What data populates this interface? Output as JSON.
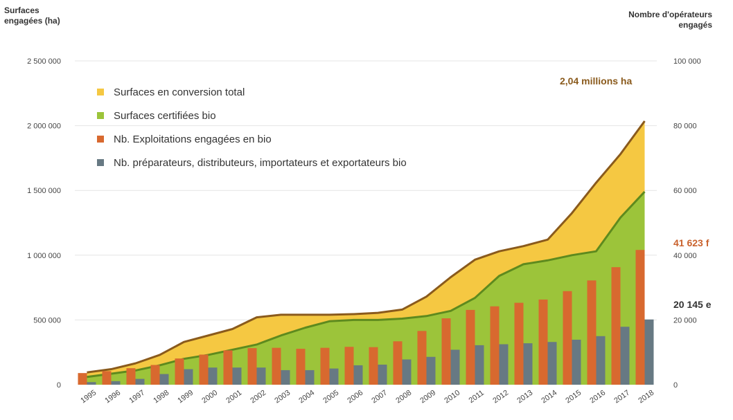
{
  "chart_data": {
    "type": "area+bar",
    "y_left_label": [
      "Surfaces",
      "engagées (ha)"
    ],
    "y_right_label": [
      "Nombre d'opérateurs",
      "engagés"
    ],
    "y_left_range": [
      0,
      2500000
    ],
    "y_right_range": [
      0,
      100000
    ],
    "y_left_ticks": [
      "0",
      "500 000",
      "1 000 000",
      "1 500 000",
      "2 000 000",
      "2 500 000"
    ],
    "y_right_ticks": [
      "0",
      "20 000",
      "40 000",
      "60 000",
      "80 000",
      "100 000"
    ],
    "categories": [
      "1995",
      "1996",
      "1997",
      "1998",
      "1999",
      "2000",
      "2001",
      "2002",
      "2003",
      "2004",
      "2005",
      "2006",
      "2007",
      "2008",
      "2009",
      "2010",
      "2011",
      "2012",
      "2013",
      "2014",
      "2015",
      "2016",
      "2017",
      "2018"
    ],
    "series": [
      {
        "name": "Surfaces en conversion total",
        "kind": "area",
        "axis": "left",
        "color": "#f5c842",
        "values": [
          95000,
          120000,
          165000,
          230000,
          330000,
          380000,
          430000,
          520000,
          540000,
          540000,
          540000,
          545000,
          555000,
          580000,
          680000,
          830000,
          965000,
          1030000,
          1070000,
          1120000,
          1325000,
          1560000,
          1780000,
          2035000
        ]
      },
      {
        "name": "Surfaces certifiées bio",
        "kind": "area",
        "axis": "left",
        "color": "#9cc43a",
        "values": [
          60000,
          85000,
          110000,
          150000,
          200000,
          230000,
          270000,
          310000,
          380000,
          440000,
          490000,
          500000,
          500000,
          510000,
          530000,
          570000,
          670000,
          840000,
          930000,
          960000,
          1000000,
          1030000,
          1290000,
          1490000
        ]
      },
      {
        "name": "Nb. Exploitations engagées en bio",
        "kind": "bar",
        "axis": "right",
        "color": "#d8692f",
        "values": [
          3600,
          4200,
          5100,
          6100,
          8100,
          9300,
          10600,
          11300,
          11400,
          11100,
          11400,
          11700,
          11600,
          13400,
          16600,
          20500,
          23100,
          24200,
          25300,
          26300,
          28900,
          32200,
          36300,
          41623
        ]
      },
      {
        "name": "Nb. préparateurs, distributeurs, importateurs et exportateurs bio",
        "kind": "bar",
        "axis": "right",
        "color": "#677983",
        "values": [
          800,
          1100,
          1800,
          3300,
          4800,
          5300,
          5300,
          5300,
          4500,
          4500,
          5000,
          6000,
          6200,
          7800,
          8600,
          10800,
          12200,
          12500,
          12800,
          13200,
          13900,
          15000,
          17900,
          20145
        ]
      }
    ],
    "annotations": {
      "surface": "2,04 millions ha",
      "exploit": "41 623 f",
      "prep": "20 145 e"
    },
    "grid": true,
    "legend_position": "top-left"
  }
}
